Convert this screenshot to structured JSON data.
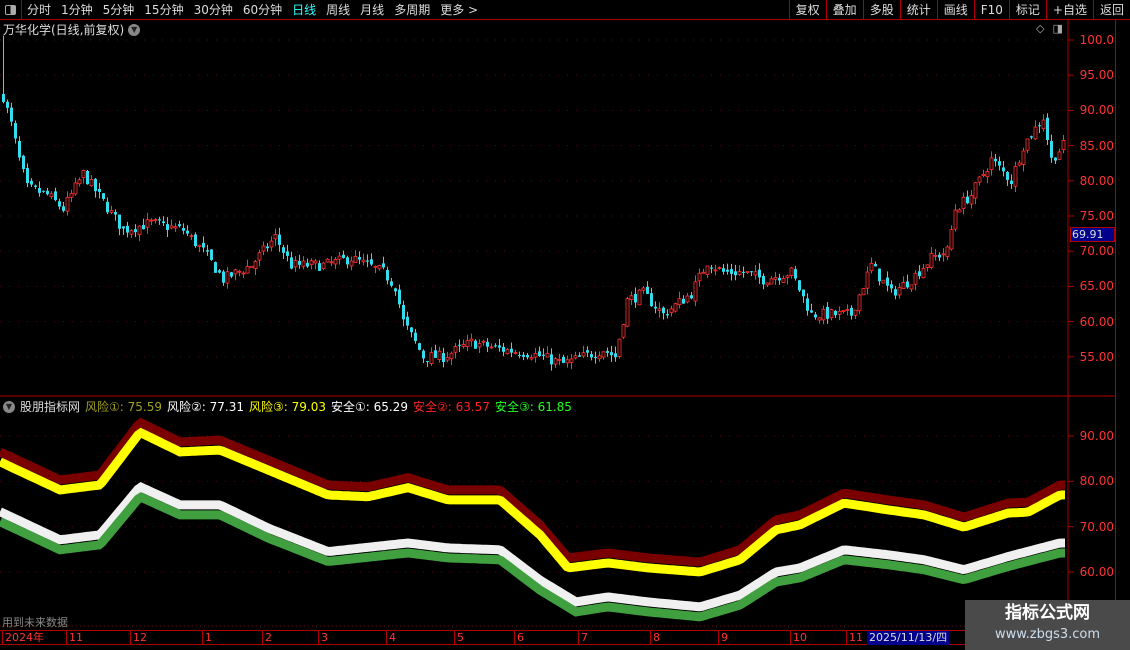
{
  "toolbar": {
    "periods": [
      "分时",
      "1分钟",
      "5分钟",
      "15分钟",
      "30分钟",
      "60分钟",
      "日线",
      "周线",
      "月线",
      "多周期",
      "更多 >"
    ],
    "active_period": "日线",
    "buttons": [
      "复权",
      "叠加",
      "多股",
      "统计",
      "画线",
      "F10",
      "标记",
      "+自选",
      "返回"
    ]
  },
  "stock": {
    "title": "万华化学(日线,前复权)"
  },
  "price_chart": {
    "y_ticks": [
      "100.0",
      "95.00",
      "90.00",
      "85.00",
      "80.00",
      "75.00",
      "70.00",
      "65.00",
      "60.00",
      "55.00"
    ],
    "y_range": [
      55,
      100
    ],
    "current_price": "69.91",
    "up_color": "#ff3333",
    "down_color": "#33ddee",
    "key_closes": [
      [
        0,
        92
      ],
      [
        2,
        88
      ],
      [
        4,
        83
      ],
      [
        6,
        79
      ],
      [
        11,
        78
      ],
      [
        15,
        76
      ],
      [
        20,
        81
      ],
      [
        25,
        77
      ],
      [
        30,
        73
      ],
      [
        37,
        74
      ],
      [
        45,
        73
      ],
      [
        50,
        70
      ],
      [
        55,
        66
      ],
      [
        62,
        68
      ],
      [
        68,
        72
      ],
      [
        72,
        68
      ],
      [
        80,
        68
      ],
      [
        87,
        69
      ],
      [
        95,
        67
      ],
      [
        98,
        65
      ],
      [
        100,
        60
      ],
      [
        105,
        55
      ],
      [
        110,
        55
      ],
      [
        117,
        57
      ],
      [
        125,
        56
      ],
      [
        132,
        55.5
      ],
      [
        140,
        54
      ],
      [
        150,
        56
      ],
      [
        153,
        55
      ],
      [
        156,
        63
      ],
      [
        160,
        64
      ],
      [
        165,
        61
      ],
      [
        172,
        64
      ],
      [
        176,
        68.5
      ],
      [
        180,
        67
      ],
      [
        185,
        67
      ],
      [
        190,
        66
      ],
      [
        197,
        67
      ],
      [
        202,
        61
      ],
      [
        212,
        61
      ],
      [
        217,
        68
      ],
      [
        222,
        64
      ],
      [
        227,
        66
      ],
      [
        232,
        69
      ],
      [
        236,
        70
      ],
      [
        238,
        76
      ],
      [
        242,
        78
      ],
      [
        247,
        83
      ],
      [
        252,
        80
      ],
      [
        255,
        85
      ],
      [
        260,
        89
      ],
      [
        262,
        83
      ],
      [
        265,
        85
      ]
    ]
  },
  "indicator": {
    "name": "股朋指标网",
    "legend": [
      {
        "label": "风险①",
        "value": "75.59",
        "color": "#a0a020"
      },
      {
        "label": "风险②",
        "value": "77.31",
        "color": "#ffffff"
      },
      {
        "label": "风险③",
        "value": "79.03",
        "color": "#ffff00"
      },
      {
        "label": "安全①",
        "value": "65.29",
        "color": "#ffffff"
      },
      {
        "label": "安全②",
        "value": "63.57",
        "color": "#ff2020"
      },
      {
        "label": "安全③",
        "value": "61.85",
        "color": "#20ff20"
      }
    ],
    "y_ticks": [
      "90.00",
      "80.00",
      "70.00",
      "60.00"
    ],
    "y_range": [
      52,
      96
    ],
    "risk_series": [
      [
        0,
        84.3
      ],
      [
        15,
        78.1
      ],
      [
        25,
        79.2
      ],
      [
        35,
        90.8
      ],
      [
        45,
        86.5
      ],
      [
        55,
        86.9
      ],
      [
        67,
        82.5
      ],
      [
        82,
        77
      ],
      [
        92,
        76.6
      ],
      [
        102,
        78.6
      ],
      [
        112,
        75.9
      ],
      [
        125,
        75.9
      ],
      [
        135,
        68.2
      ],
      [
        142,
        60.9
      ],
      [
        152,
        62
      ],
      [
        162,
        60.9
      ],
      [
        175,
        60
      ],
      [
        185,
        62.7
      ],
      [
        194,
        69.3
      ],
      [
        200,
        70.4
      ],
      [
        211,
        75.2
      ],
      [
        222,
        73.7
      ],
      [
        231,
        72.6
      ],
      [
        241,
        69.9
      ],
      [
        252,
        73
      ],
      [
        257,
        73.2
      ],
      [
        265,
        77
      ]
    ],
    "safe_series": [
      [
        0,
        71.1
      ],
      [
        15,
        64.9
      ],
      [
        25,
        66
      ],
      [
        35,
        76.6
      ],
      [
        45,
        72.6
      ],
      [
        55,
        72.6
      ],
      [
        67,
        67.5
      ],
      [
        82,
        62.3
      ],
      [
        102,
        64.2
      ],
      [
        112,
        63.1
      ],
      [
        125,
        62.7
      ],
      [
        135,
        56
      ],
      [
        144,
        51.2
      ],
      [
        152,
        52.3
      ],
      [
        162,
        51.2
      ],
      [
        175,
        50.1
      ],
      [
        185,
        52.7
      ],
      [
        194,
        57.8
      ],
      [
        200,
        58.7
      ],
      [
        211,
        62.7
      ],
      [
        222,
        61.6
      ],
      [
        231,
        60.5
      ],
      [
        241,
        58.3
      ],
      [
        252,
        61.2
      ],
      [
        265,
        64.2
      ]
    ],
    "band_colors": {
      "risk_top": "#7a0000",
      "risk": "#ffff00",
      "safe_top": "#f0f0f0",
      "safe": "#40a040"
    }
  },
  "future_note": "用到未来数据",
  "time_axis": {
    "labels": [
      [
        "2024年",
        0
      ],
      [
        "11",
        16
      ],
      [
        "12",
        32
      ],
      [
        "1",
        50
      ],
      [
        "2",
        65
      ],
      [
        "3",
        79
      ],
      [
        "4",
        96
      ],
      [
        "5",
        113
      ],
      [
        "6",
        128
      ],
      [
        "7",
        144
      ],
      [
        "8",
        162
      ],
      [
        "9",
        179
      ],
      [
        "10",
        197
      ],
      [
        "11",
        211
      ]
    ],
    "current_date": "2025/11/13/四"
  },
  "watermark": {
    "line1": "指标公式网",
    "line2": "www.zbgs3.com"
  }
}
